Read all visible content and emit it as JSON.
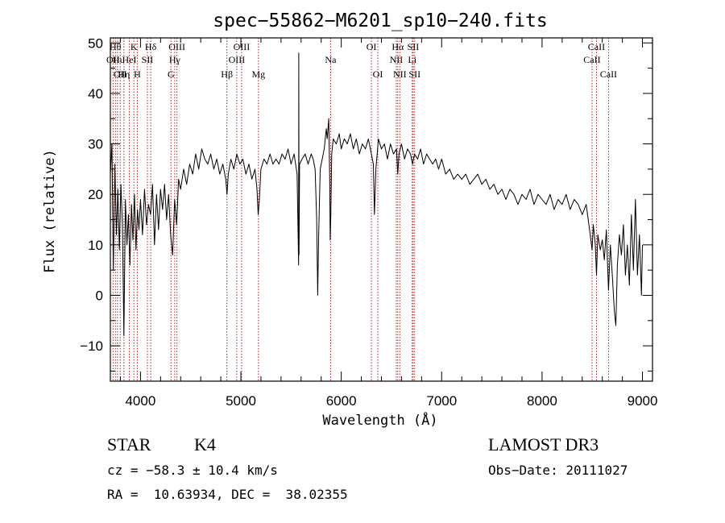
{
  "header": {
    "title": "spec−55862−M6201_sp10−240.fits"
  },
  "info": {
    "object_class": "STAR",
    "subclass": "K4",
    "survey": "LAMOST DR3",
    "velocity": "cz = −58.3 ± 10.4 km/s",
    "obs_date": "Obs−Date: 20111027",
    "coords": "RA =  10.63934, DEC =  38.02355"
  },
  "colors": {
    "axis": "#000000",
    "line_marker": "#b22222",
    "spectrum": "#000000"
  },
  "chart_data": {
    "type": "line",
    "title": "spec−55862−M6201_sp10−240.fits",
    "xlabel": "Wavelength (Å)",
    "ylabel": "Flux (relative)",
    "xlim": [
      3700,
      9100
    ],
    "ylim": [
      -17,
      51
    ],
    "xticks": [
      4000,
      5000,
      6000,
      7000,
      8000,
      9000
    ],
    "yticks": [
      -10,
      0,
      10,
      20,
      30,
      40,
      50
    ],
    "ytick_labels": [
      "−10",
      "0",
      "10",
      "20",
      "30",
      "40",
      "50"
    ],
    "grid": false,
    "series": [
      {
        "name": "flux",
        "points": [
          [
            3700,
            24
          ],
          [
            3715,
            30
          ],
          [
            3730,
            5
          ],
          [
            3745,
            26
          ],
          [
            3760,
            12
          ],
          [
            3775,
            21
          ],
          [
            3790,
            9
          ],
          [
            3805,
            22
          ],
          [
            3820,
            14
          ],
          [
            3835,
            -8
          ],
          [
            3850,
            19
          ],
          [
            3865,
            10
          ],
          [
            3880,
            16
          ],
          [
            3895,
            6
          ],
          [
            3910,
            18
          ],
          [
            3925,
            11
          ],
          [
            3940,
            20
          ],
          [
            3955,
            9
          ],
          [
            3970,
            17
          ],
          [
            3985,
            13
          ],
          [
            4000,
            19
          ],
          [
            4020,
            12
          ],
          [
            4040,
            21
          ],
          [
            4060,
            14
          ],
          [
            4080,
            18
          ],
          [
            4100,
            16
          ],
          [
            4120,
            22
          ],
          [
            4140,
            10
          ],
          [
            4160,
            20
          ],
          [
            4180,
            13
          ],
          [
            4200,
            21
          ],
          [
            4220,
            17
          ],
          [
            4240,
            22
          ],
          [
            4260,
            15
          ],
          [
            4280,
            20
          ],
          [
            4300,
            12
          ],
          [
            4320,
            8
          ],
          [
            4340,
            19
          ],
          [
            4360,
            14
          ],
          [
            4380,
            23
          ],
          [
            4400,
            21
          ],
          [
            4430,
            25
          ],
          [
            4460,
            22
          ],
          [
            4490,
            26
          ],
          [
            4520,
            24
          ],
          [
            4550,
            28
          ],
          [
            4580,
            25
          ],
          [
            4610,
            29
          ],
          [
            4640,
            27
          ],
          [
            4670,
            26
          ],
          [
            4700,
            28
          ],
          [
            4730,
            25
          ],
          [
            4760,
            27
          ],
          [
            4790,
            24
          ],
          [
            4820,
            26
          ],
          [
            4850,
            23
          ],
          [
            4862,
            20
          ],
          [
            4875,
            24
          ],
          [
            4900,
            27
          ],
          [
            4930,
            25
          ],
          [
            4960,
            28
          ],
          [
            4990,
            26
          ],
          [
            5020,
            27
          ],
          [
            5050,
            24
          ],
          [
            5080,
            26
          ],
          [
            5110,
            23
          ],
          [
            5140,
            25
          ],
          [
            5160,
            21
          ],
          [
            5172,
            16
          ],
          [
            5184,
            19
          ],
          [
            5200,
            25
          ],
          [
            5230,
            27
          ],
          [
            5260,
            26
          ],
          [
            5290,
            28
          ],
          [
            5320,
            26
          ],
          [
            5350,
            27
          ],
          [
            5380,
            26
          ],
          [
            5410,
            28
          ],
          [
            5440,
            27
          ],
          [
            5470,
            29
          ],
          [
            5500,
            26
          ],
          [
            5530,
            28
          ],
          [
            5560,
            24
          ],
          [
            5575,
            6
          ],
          [
            5577,
            48
          ],
          [
            5579,
            8
          ],
          [
            5585,
            26
          ],
          [
            5610,
            27
          ],
          [
            5640,
            28
          ],
          [
            5670,
            26
          ],
          [
            5700,
            28
          ],
          [
            5720,
            27
          ],
          [
            5740,
            25
          ],
          [
            5755,
            15
          ],
          [
            5765,
            0
          ],
          [
            5775,
            12
          ],
          [
            5790,
            25
          ],
          [
            5810,
            27
          ],
          [
            5830,
            29
          ],
          [
            5850,
            33
          ],
          [
            5860,
            31
          ],
          [
            5875,
            35
          ],
          [
            5885,
            23
          ],
          [
            5890,
            11
          ],
          [
            5896,
            16
          ],
          [
            5905,
            28
          ],
          [
            5920,
            31
          ],
          [
            5950,
            30
          ],
          [
            5980,
            32
          ],
          [
            6000,
            29
          ],
          [
            6030,
            31
          ],
          [
            6060,
            30
          ],
          [
            6090,
            32
          ],
          [
            6120,
            29
          ],
          [
            6150,
            31
          ],
          [
            6180,
            28
          ],
          [
            6210,
            30
          ],
          [
            6240,
            29
          ],
          [
            6270,
            31
          ],
          [
            6300,
            28
          ],
          [
            6320,
            26
          ],
          [
            6330,
            16
          ],
          [
            6345,
            25
          ],
          [
            6370,
            31
          ],
          [
            6400,
            29
          ],
          [
            6430,
            30
          ],
          [
            6460,
            27
          ],
          [
            6490,
            30
          ],
          [
            6520,
            28
          ],
          [
            6550,
            29
          ],
          [
            6563,
            24
          ],
          [
            6575,
            28
          ],
          [
            6600,
            30
          ],
          [
            6630,
            27
          ],
          [
            6660,
            29
          ],
          [
            6690,
            28
          ],
          [
            6710,
            26
          ],
          [
            6730,
            28
          ],
          [
            6760,
            27
          ],
          [
            6790,
            29
          ],
          [
            6820,
            26
          ],
          [
            6850,
            28
          ],
          [
            6880,
            27
          ],
          [
            6910,
            26
          ],
          [
            6940,
            27
          ],
          [
            6970,
            25
          ],
          [
            7000,
            27
          ],
          [
            7040,
            24
          ],
          [
            7080,
            25
          ],
          [
            7120,
            23
          ],
          [
            7160,
            24
          ],
          [
            7200,
            23
          ],
          [
            7240,
            24
          ],
          [
            7280,
            22
          ],
          [
            7320,
            23
          ],
          [
            7360,
            24
          ],
          [
            7400,
            22
          ],
          [
            7440,
            23
          ],
          [
            7480,
            21
          ],
          [
            7520,
            22
          ],
          [
            7560,
            20
          ],
          [
            7600,
            21
          ],
          [
            7640,
            19
          ],
          [
            7680,
            21
          ],
          [
            7720,
            20
          ],
          [
            7760,
            18
          ],
          [
            7800,
            20
          ],
          [
            7840,
            19
          ],
          [
            7880,
            21
          ],
          [
            7920,
            18
          ],
          [
            7960,
            20
          ],
          [
            8000,
            19
          ],
          [
            8040,
            18
          ],
          [
            8080,
            20
          ],
          [
            8120,
            17
          ],
          [
            8160,
            19
          ],
          [
            8200,
            18
          ],
          [
            8240,
            20
          ],
          [
            8280,
            17
          ],
          [
            8320,
            19
          ],
          [
            8360,
            18
          ],
          [
            8400,
            16
          ],
          [
            8440,
            18
          ],
          [
            8460,
            15
          ],
          [
            8480,
            12
          ],
          [
            8498,
            9
          ],
          [
            8510,
            14
          ],
          [
            8530,
            10
          ],
          [
            8542,
            4
          ],
          [
            8555,
            12
          ],
          [
            8580,
            9
          ],
          [
            8600,
            11
          ],
          [
            8620,
            7
          ],
          [
            8640,
            13
          ],
          [
            8662,
            1
          ],
          [
            8680,
            10
          ],
          [
            8700,
            4
          ],
          [
            8720,
            -3
          ],
          [
            8735,
            -6
          ],
          [
            8750,
            6
          ],
          [
            8770,
            12
          ],
          [
            8790,
            8
          ],
          [
            8810,
            14
          ],
          [
            8830,
            4
          ],
          [
            8850,
            10
          ],
          [
            8870,
            2
          ],
          [
            8890,
            16
          ],
          [
            8910,
            5
          ],
          [
            8930,
            19
          ],
          [
            8950,
            4
          ],
          [
            8970,
            12
          ],
          [
            8990,
            0
          ],
          [
            9000,
            10
          ]
        ]
      }
    ],
    "line_markers": [
      {
        "lambda": 3727,
        "label": "OII",
        "row": 2
      },
      {
        "lambda": 3750,
        "label": "Hθ",
        "row": 1
      },
      {
        "lambda": 3771,
        "label": "Hι",
        "row": 2
      },
      {
        "lambda": 3798,
        "label": "OII",
        "row": 3
      },
      {
        "lambda": 3835,
        "label": "Hη",
        "row": 3
      },
      {
        "lambda": 3889,
        "label": "HeI",
        "row": 2
      },
      {
        "lambda": 3934,
        "label": "K",
        "row": 1
      },
      {
        "lambda": 3968,
        "label": "H",
        "row": 3
      },
      {
        "lambda": 4069,
        "label": "SII",
        "row": 2
      },
      {
        "lambda": 4102,
        "label": "Hδ",
        "row": 1
      },
      {
        "lambda": 4304,
        "label": "G",
        "row": 3
      },
      {
        "lambda": 4341,
        "label": "Hγ",
        "row": 2
      },
      {
        "lambda": 4363,
        "label": "OIII",
        "row": 1
      },
      {
        "lambda": 4861,
        "label": "Hβ",
        "row": 3
      },
      {
        "lambda": 4959,
        "label": "OIII",
        "row": 2
      },
      {
        "lambda": 5007,
        "label": "OIII",
        "row": 1
      },
      {
        "lambda": 5175,
        "label": "Mg",
        "row": 3
      },
      {
        "lambda": 5894,
        "label": "Na",
        "row": 2
      },
      {
        "lambda": 6300,
        "label": "OI",
        "row": 1
      },
      {
        "lambda": 6364,
        "label": "OI",
        "row": 3
      },
      {
        "lambda": 6548,
        "label": "NII",
        "row": 2
      },
      {
        "lambda": 6563,
        "label": "Hα",
        "row": 1
      },
      {
        "lambda": 6583,
        "label": "NII",
        "row": 3
      },
      {
        "lambda": 6707,
        "label": "Li",
        "row": 2
      },
      {
        "lambda": 6716,
        "label": "SII",
        "row": 1
      },
      {
        "lambda": 6731,
        "label": "SII",
        "row": 3
      },
      {
        "lambda": 8498,
        "label": "CaII",
        "row": 2
      },
      {
        "lambda": 8542,
        "label": "CaII",
        "row": 1
      },
      {
        "lambda": 8662,
        "label": "CaII",
        "row": 3
      }
    ]
  }
}
